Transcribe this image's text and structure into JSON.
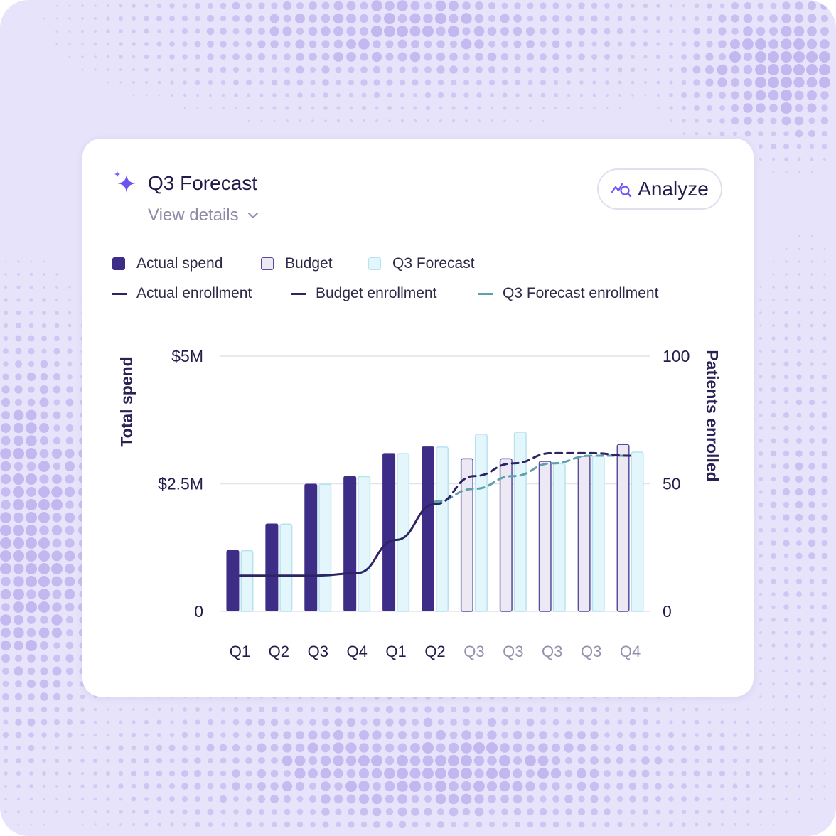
{
  "card": {
    "title": "Q3 Forecast",
    "details_label": "View details",
    "analyze_label": "Analyze"
  },
  "legend": {
    "bars": [
      {
        "label": "Actual spend",
        "fill": "#3d2d86",
        "stroke": "#3d2d86"
      },
      {
        "label": "Budget",
        "fill": "#ece9f5",
        "stroke": "#5a4b9a"
      },
      {
        "label": "Q3 Forecast",
        "fill": "#e3f6fb",
        "stroke": "#b7e3ee"
      }
    ],
    "lines": [
      {
        "label": "Actual enrollment",
        "color": "#2e2463",
        "dash": "solid"
      },
      {
        "label": "Budget enrollment",
        "color": "#2e2463",
        "dash": "dashed"
      },
      {
        "label": "Q3 Forecast enrollment",
        "color": "#5fa0ad",
        "dash": "dashed"
      }
    ]
  },
  "chart_data": {
    "type": "bar",
    "left_axis": {
      "title": "Total spend",
      "ticks": [
        "$5M",
        "$2.5M",
        "0"
      ],
      "range": [
        0,
        5
      ]
    },
    "right_axis": {
      "title": "Patients enrolled",
      "ticks": [
        "100",
        "50",
        "0"
      ],
      "range": [
        0,
        100
      ]
    },
    "categories": [
      "Q1",
      "Q2",
      "Q3",
      "Q4",
      "Q1",
      "Q2",
      "Q3",
      "Q3",
      "Q3",
      "Q3",
      "Q4"
    ],
    "category_styles": [
      "actual",
      "actual",
      "actual",
      "actual",
      "actual",
      "actual",
      "forecast",
      "forecast",
      "forecast",
      "forecast",
      "forecast"
    ],
    "series": [
      {
        "name": "Actual spend",
        "kind": "bar",
        "axis": "left",
        "unit": "$M",
        "values": [
          1.2,
          1.72,
          2.5,
          2.65,
          3.1,
          3.23,
          null,
          null,
          null,
          null,
          null
        ]
      },
      {
        "name": "Budget",
        "kind": "bar",
        "axis": "left",
        "unit": "$M",
        "values": [
          null,
          null,
          null,
          null,
          null,
          null,
          3.0,
          3.0,
          2.95,
          3.05,
          3.28
        ]
      },
      {
        "name": "Q3 Forecast",
        "kind": "bar",
        "axis": "left",
        "unit": "$M",
        "values": [
          1.2,
          1.72,
          2.5,
          2.65,
          3.1,
          3.23,
          3.48,
          3.52,
          2.9,
          3.05,
          3.13
        ]
      },
      {
        "name": "Actual enrollment",
        "kind": "line",
        "axis": "right",
        "values": [
          14,
          14,
          14,
          15,
          28,
          42,
          null,
          null,
          null,
          null,
          null
        ]
      },
      {
        "name": "Budget enrollment",
        "kind": "line",
        "axis": "right",
        "values": [
          null,
          null,
          null,
          null,
          null,
          42,
          53,
          58,
          62,
          62,
          61
        ]
      },
      {
        "name": "Q3 Forecast enrollment",
        "kind": "line",
        "axis": "right",
        "values": [
          null,
          null,
          null,
          null,
          null,
          43,
          48,
          53,
          58,
          61,
          61
        ]
      }
    ],
    "grid": true,
    "legend_position": "top-left"
  },
  "colors": {
    "actual": "#3d2d86",
    "budget_fill": "#ece9f5",
    "budget_stroke": "#5a4b9a",
    "forecast_fill": "#e3f6fb",
    "forecast_stroke": "#b7e3ee",
    "line_dark": "#2e2463",
    "line_teal": "#5fa0ad",
    "tick_actual": "#231c4d",
    "tick_forecast": "#9690ad",
    "accent": "#6d54f0"
  },
  "icons": {
    "title": "sparkle-icon",
    "details": "chevron-down-icon",
    "analyze": "analyze-chart-icon"
  }
}
